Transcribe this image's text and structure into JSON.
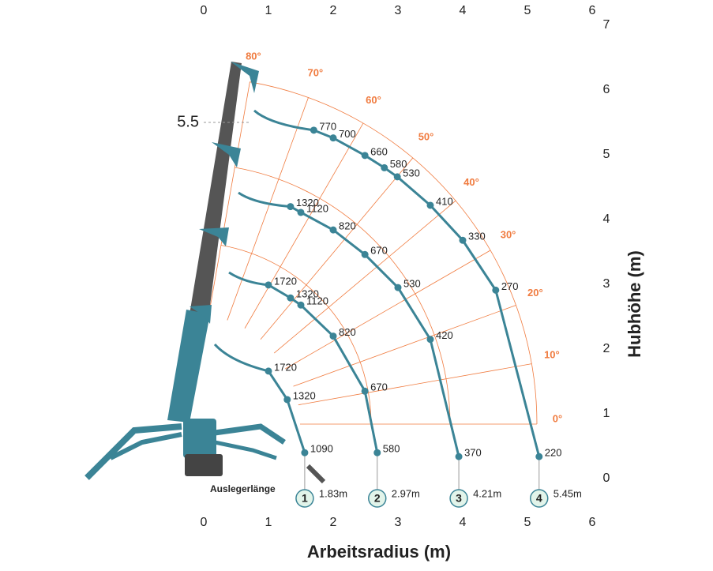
{
  "chart_data": {
    "type": "load-chart",
    "xlabel": "Arbeitsradius (m)",
    "ylabel": "Hubhöhe (m)",
    "xlim": [
      0,
      6
    ],
    "xticks": [
      0,
      1,
      2,
      3,
      4,
      5,
      6
    ],
    "ylim": [
      0,
      7
    ],
    "yticks": [
      0,
      1,
      2,
      3,
      4,
      5,
      6,
      7
    ],
    "curve_color": "#3b8496",
    "angle_color": "#f07b3f",
    "angles": [
      {
        "value": 0,
        "label": "0°"
      },
      {
        "value": 10,
        "label": "10°"
      },
      {
        "value": 20,
        "label": "20°"
      },
      {
        "value": 30,
        "label": "30°"
      },
      {
        "value": 40,
        "label": "40°"
      },
      {
        "value": 50,
        "label": "50°"
      },
      {
        "value": 60,
        "label": "60°"
      },
      {
        "value": 70,
        "label": "70°"
      },
      {
        "value": 80,
        "label": "80°"
      }
    ],
    "annotation": 5.5,
    "boom_label": "Auslegerlänge",
    "series": [
      {
        "name": "1",
        "length": "1.83m",
        "x": [
          1.0,
          1.29,
          1.56
        ],
        "y": [
          1.66,
          1.22,
          0.4
        ],
        "values": [
          1720,
          1320,
          1090
        ]
      },
      {
        "name": "2",
        "length": "2.97m",
        "x": [
          1.0,
          1.34,
          1.5,
          2.0,
          2.49,
          2.68
        ],
        "y": [
          2.99,
          2.79,
          2.68,
          2.2,
          1.35,
          0.4
        ],
        "values": [
          1720,
          1320,
          1120,
          820,
          670,
          580
        ]
      },
      {
        "name": "3",
        "length": "4.21m",
        "x": [
          1.34,
          1.5,
          2.0,
          2.49,
          3.0,
          3.5,
          3.94
        ],
        "y": [
          4.2,
          4.11,
          3.84,
          3.46,
          2.95,
          2.15,
          0.34
        ],
        "values": [
          1320,
          1120,
          820,
          670,
          530,
          420,
          370
        ]
      },
      {
        "name": "4",
        "length": "5.45m",
        "x": [
          1.7,
          2.0,
          2.49,
          2.79,
          2.99,
          3.5,
          4.0,
          4.51,
          5.18
        ],
        "y": [
          5.38,
          5.26,
          4.99,
          4.8,
          4.66,
          4.22,
          3.68,
          2.91,
          0.34
        ],
        "values": [
          770,
          700,
          660,
          580,
          530,
          410,
          330,
          270,
          220
        ]
      }
    ]
  }
}
